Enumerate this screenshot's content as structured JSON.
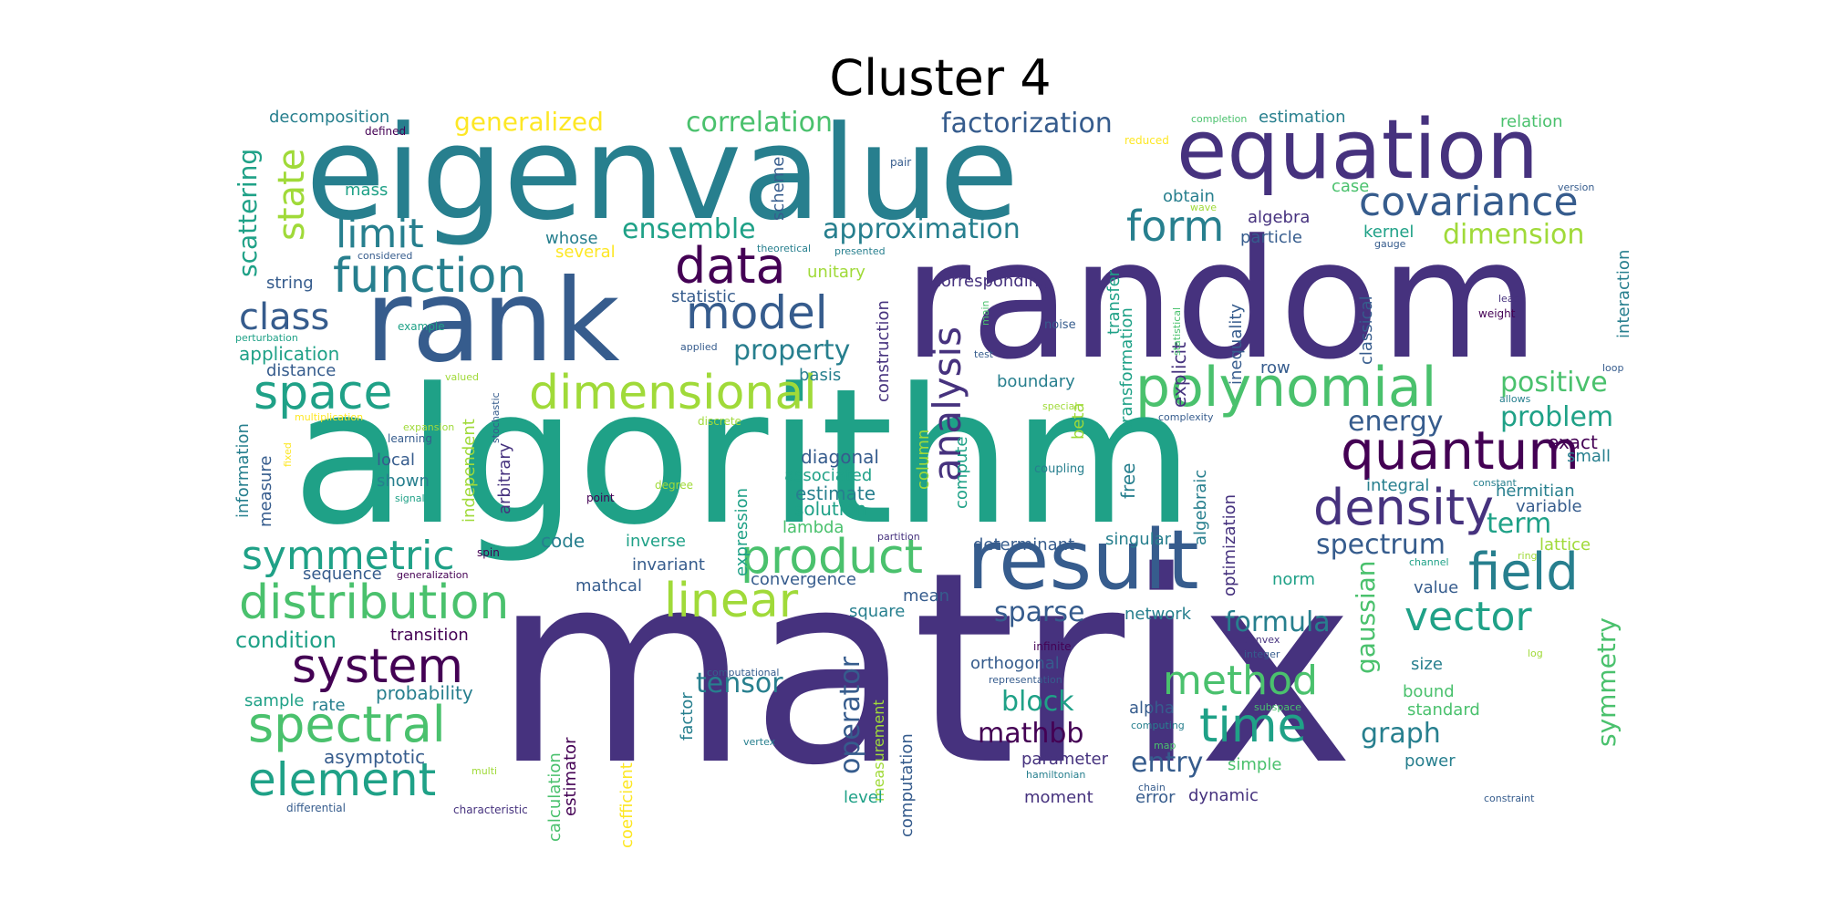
{
  "title": "Cluster 4",
  "palette": {
    "p": "#46327e",
    "b": "#365c8d",
    "t": "#277f8e",
    "g": "#1fa187",
    "lg": "#4ac16d",
    "y": "#a0da39",
    "yy": "#fde725",
    "d": "#440154"
  },
  "words": [
    {
      "t": "matrix",
      "c": "p"
    },
    {
      "t": "algorithm",
      "c": "g"
    },
    {
      "t": "random",
      "c": "p"
    },
    {
      "t": "eigenvalue",
      "c": "t"
    },
    {
      "t": "rank",
      "c": "b"
    },
    {
      "t": "result",
      "c": "b"
    },
    {
      "t": "equation",
      "c": "p"
    },
    {
      "t": "polynomial",
      "c": "lg"
    },
    {
      "t": "quantum",
      "c": "d"
    },
    {
      "t": "density",
      "c": "p"
    },
    {
      "t": "product",
      "c": "lg"
    },
    {
      "t": "distribution",
      "c": "lg"
    },
    {
      "t": "dimensional",
      "c": "y"
    },
    {
      "t": "function",
      "c": "t"
    },
    {
      "t": "data",
      "c": "d"
    },
    {
      "t": "linear",
      "c": "y"
    },
    {
      "t": "model",
      "c": "b"
    },
    {
      "t": "spectral",
      "c": "lg"
    },
    {
      "t": "element",
      "c": "g"
    },
    {
      "t": "system",
      "c": "d"
    },
    {
      "t": "covariance",
      "c": "b"
    },
    {
      "t": "space",
      "c": "g"
    },
    {
      "t": "symmetric",
      "c": "g"
    },
    {
      "t": "field",
      "c": "t"
    },
    {
      "t": "vector",
      "c": "g"
    },
    {
      "t": "time",
      "c": "g"
    },
    {
      "t": "method",
      "c": "lg"
    },
    {
      "t": "analysis",
      "c": "p"
    },
    {
      "t": "form",
      "c": "t"
    },
    {
      "t": "state",
      "c": "y"
    },
    {
      "t": "limit",
      "c": "t"
    },
    {
      "t": "class",
      "c": "b"
    },
    {
      "t": "approximation",
      "c": "t"
    },
    {
      "t": "factorization",
      "c": "b"
    },
    {
      "t": "correlation",
      "c": "lg"
    },
    {
      "t": "ensemble",
      "c": "g"
    },
    {
      "t": "generalized",
      "c": "yy"
    },
    {
      "t": "scattering",
      "c": "g"
    },
    {
      "t": "property",
      "c": "t"
    },
    {
      "t": "positive",
      "c": "lg"
    },
    {
      "t": "problem",
      "c": "g"
    },
    {
      "t": "spectrum",
      "c": "b"
    },
    {
      "t": "energy",
      "c": "b"
    },
    {
      "t": "term",
      "c": "g"
    },
    {
      "t": "tensor",
      "c": "t"
    },
    {
      "t": "mathbb",
      "c": "d"
    },
    {
      "t": "block",
      "c": "g"
    },
    {
      "t": "graph",
      "c": "t"
    },
    {
      "t": "entry",
      "c": "b"
    },
    {
      "t": "formula",
      "c": "t"
    },
    {
      "t": "sparse",
      "c": "b"
    },
    {
      "t": "operator",
      "c": "b"
    },
    {
      "t": "gaussian",
      "c": "lg"
    },
    {
      "t": "symmetry",
      "c": "lg"
    },
    {
      "t": "dimension",
      "c": "y"
    },
    {
      "t": "exact",
      "c": "d"
    },
    {
      "t": "decomposition",
      "c": "t"
    },
    {
      "t": "estimation",
      "c": "t"
    },
    {
      "t": "relation",
      "c": "lg"
    },
    {
      "t": "application",
      "c": "g"
    },
    {
      "t": "condition",
      "c": "g"
    },
    {
      "t": "distance",
      "c": "b"
    },
    {
      "t": "string",
      "c": "b"
    },
    {
      "t": "mass",
      "c": "g"
    },
    {
      "t": "probability",
      "c": "t"
    },
    {
      "t": "asymptotic",
      "c": "b"
    },
    {
      "t": "sample",
      "c": "g"
    },
    {
      "t": "rate",
      "c": "t"
    },
    {
      "t": "transition",
      "c": "d"
    },
    {
      "t": "sequence",
      "c": "b"
    },
    {
      "t": "local",
      "c": "b"
    },
    {
      "t": "shown",
      "c": "t"
    },
    {
      "t": "code",
      "c": "t"
    },
    {
      "t": "inverse",
      "c": "g"
    },
    {
      "t": "invariant",
      "c": "b"
    },
    {
      "t": "mathcal",
      "c": "b"
    },
    {
      "t": "convergence",
      "c": "b"
    },
    {
      "t": "square",
      "c": "t"
    },
    {
      "t": "mean",
      "c": "b"
    },
    {
      "t": "lambda",
      "c": "lg"
    },
    {
      "t": "solution",
      "c": "g"
    },
    {
      "t": "estimate",
      "c": "t"
    },
    {
      "t": "associated",
      "c": "g"
    },
    {
      "t": "diagonal",
      "c": "b"
    },
    {
      "t": "basis",
      "c": "t"
    },
    {
      "t": "unitary",
      "c": "y"
    },
    {
      "t": "statistic",
      "c": "b"
    },
    {
      "t": "corresponding",
      "c": "p"
    },
    {
      "t": "determinant",
      "c": "b"
    },
    {
      "t": "singular",
      "c": "t"
    },
    {
      "t": "boundary",
      "c": "t"
    },
    {
      "t": "network",
      "c": "t"
    },
    {
      "t": "orthogonal",
      "c": "b"
    },
    {
      "t": "parameter",
      "c": "p"
    },
    {
      "t": "moment",
      "c": "p"
    },
    {
      "t": "error",
      "c": "b"
    },
    {
      "t": "dynamic",
      "c": "p"
    },
    {
      "t": "simple",
      "c": "lg"
    },
    {
      "t": "alpha",
      "c": "b"
    },
    {
      "t": "size",
      "c": "t"
    },
    {
      "t": "bound",
      "c": "lg"
    },
    {
      "t": "standard",
      "c": "lg"
    },
    {
      "t": "power",
      "c": "t"
    },
    {
      "t": "value",
      "c": "b"
    },
    {
      "t": "norm",
      "c": "g"
    },
    {
      "t": "integral",
      "c": "t"
    },
    {
      "t": "small",
      "c": "t"
    },
    {
      "t": "hermitian",
      "c": "t"
    },
    {
      "t": "variable",
      "c": "b"
    },
    {
      "t": "lattice",
      "c": "y"
    },
    {
      "t": "row",
      "c": "b"
    },
    {
      "t": "algebra",
      "c": "p"
    },
    {
      "t": "particle",
      "c": "b"
    },
    {
      "t": "obtain",
      "c": "t"
    },
    {
      "t": "case",
      "c": "lg"
    },
    {
      "t": "kernel",
      "c": "g"
    },
    {
      "t": "whose",
      "c": "t"
    },
    {
      "t": "several",
      "c": "yy"
    },
    {
      "t": "scheme",
      "c": "b"
    },
    {
      "t": "free",
      "c": "t"
    },
    {
      "t": "beta",
      "c": "y"
    },
    {
      "t": "column",
      "c": "y"
    },
    {
      "t": "compute",
      "c": "g"
    },
    {
      "t": "construction",
      "c": "p"
    },
    {
      "t": "transformation",
      "c": "g"
    },
    {
      "t": "transfer",
      "c": "g"
    },
    {
      "t": "explicit",
      "c": "p"
    },
    {
      "t": "inequality",
      "c": "b"
    },
    {
      "t": "classical",
      "c": "b"
    },
    {
      "t": "interaction",
      "c": "t"
    },
    {
      "t": "algebraic",
      "c": "t"
    },
    {
      "t": "optimization",
      "c": "p"
    },
    {
      "t": "information",
      "c": "t"
    },
    {
      "t": "measure",
      "c": "b"
    },
    {
      "t": "independent",
      "c": "y"
    },
    {
      "t": "arbitrary",
      "c": "p"
    },
    {
      "t": "expression",
      "c": "g"
    },
    {
      "t": "factor",
      "c": "t"
    },
    {
      "t": "calculation",
      "c": "lg"
    },
    {
      "t": "estimator",
      "c": "d"
    },
    {
      "t": "coefficient",
      "c": "yy"
    },
    {
      "t": "measurement",
      "c": "y"
    },
    {
      "t": "computation",
      "c": "b"
    },
    {
      "t": "level",
      "c": "g"
    },
    {
      "t": "coupling",
      "c": "t"
    },
    {
      "t": "noise",
      "c": "b"
    },
    {
      "t": "test",
      "c": "b"
    },
    {
      "t": "main",
      "c": "lg"
    },
    {
      "t": "weight",
      "c": "d"
    },
    {
      "t": "lead",
      "c": "p"
    },
    {
      "t": "gauge",
      "c": "b"
    },
    {
      "t": "loop",
      "c": "b"
    },
    {
      "t": "allows",
      "c": "t"
    },
    {
      "t": "constant",
      "c": "t"
    },
    {
      "t": "ring",
      "c": "y"
    },
    {
      "t": "channel",
      "c": "g"
    },
    {
      "t": "log",
      "c": "y"
    },
    {
      "t": "convex",
      "c": "p"
    },
    {
      "t": "integer",
      "c": "b"
    },
    {
      "t": "infinite",
      "c": "d"
    },
    {
      "t": "representation",
      "c": "b"
    },
    {
      "t": "computational",
      "c": "b"
    },
    {
      "t": "vertex",
      "c": "t"
    },
    {
      "t": "subspace",
      "c": "lg"
    },
    {
      "t": "computing",
      "c": "t"
    },
    {
      "t": "map",
      "c": "lg"
    },
    {
      "t": "hamiltonian",
      "c": "t"
    },
    {
      "t": "chain",
      "c": "b"
    },
    {
      "t": "constraint",
      "c": "b"
    },
    {
      "t": "differential",
      "c": "b"
    },
    {
      "t": "characteristic",
      "c": "p"
    },
    {
      "t": "multi",
      "c": "y"
    },
    {
      "t": "completion",
      "c": "lg"
    },
    {
      "t": "reduced",
      "c": "yy"
    },
    {
      "t": "wave",
      "c": "y"
    },
    {
      "t": "version",
      "c": "b"
    },
    {
      "t": "pair",
      "c": "b"
    },
    {
      "t": "theoretical",
      "c": "t"
    },
    {
      "t": "presented",
      "c": "t"
    },
    {
      "t": "considered",
      "c": "b"
    },
    {
      "t": "defined",
      "c": "d"
    },
    {
      "t": "example",
      "c": "g"
    },
    {
      "t": "perturbation",
      "c": "g"
    },
    {
      "t": "applied",
      "c": "b"
    },
    {
      "t": "valued",
      "c": "y"
    },
    {
      "t": "multiplication",
      "c": "yy"
    },
    {
      "t": "expansion",
      "c": "y"
    },
    {
      "t": "learning",
      "c": "b"
    },
    {
      "t": "stochastic",
      "c": "b"
    },
    {
      "t": "discrete",
      "c": "y"
    },
    {
      "t": "fixed",
      "c": "yy"
    },
    {
      "t": "signal",
      "c": "g"
    },
    {
      "t": "degree",
      "c": "y"
    },
    {
      "t": "point",
      "c": "d"
    },
    {
      "t": "spin",
      "c": "d"
    },
    {
      "t": "generalization",
      "c": "d"
    },
    {
      "t": "partition",
      "c": "p"
    },
    {
      "t": "complexity",
      "c": "b"
    },
    {
      "t": "special",
      "c": "y"
    },
    {
      "t": "statistical",
      "c": "lg"
    }
  ]
}
